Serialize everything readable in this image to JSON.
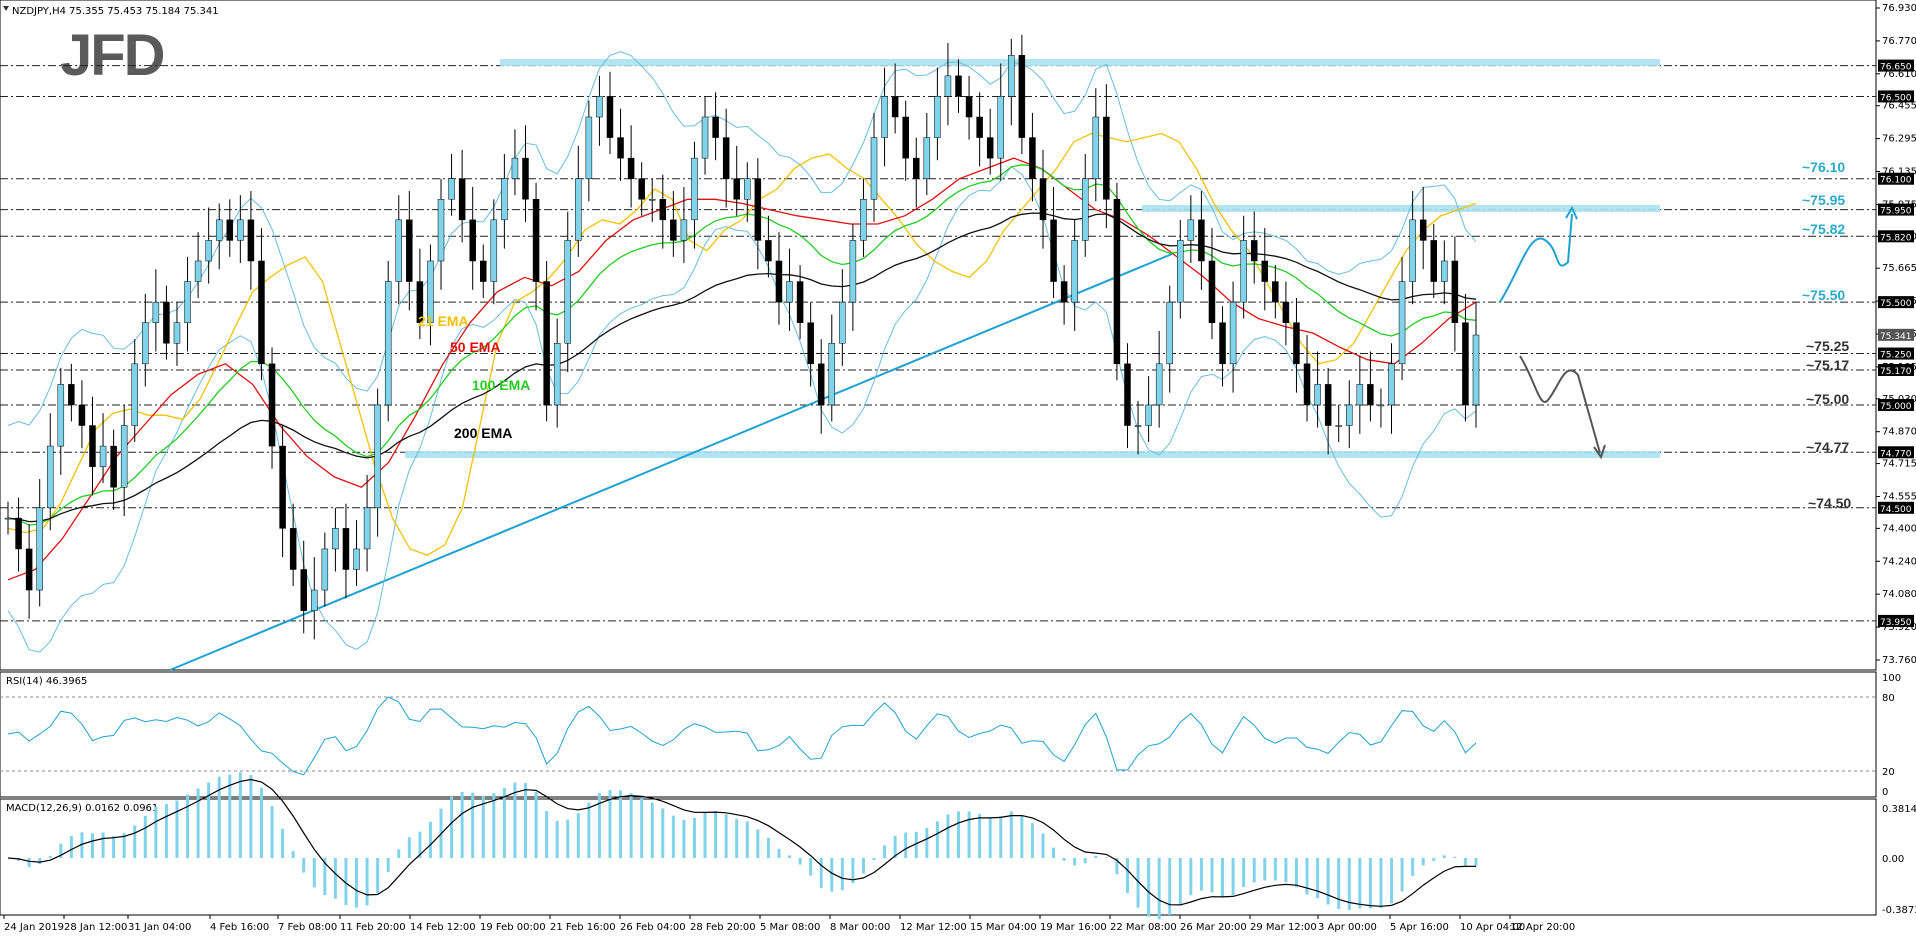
{
  "header": {
    "symbol_info": "NZDJPY,H4  75.355 75.453 75.184 75.341",
    "logo": "JFD"
  },
  "rsi": {
    "label": "RSI(14) 46.3965",
    "ticks": [
      "100",
      "80",
      "20",
      "0"
    ]
  },
  "macd": {
    "label": "MACD(12,26,9) 0.0162 0.0961",
    "ticks": [
      "0.3814",
      "0.00",
      "-0.3873"
    ]
  },
  "ema_labels": [
    {
      "text": "21 EMA",
      "color": "#f2c200"
    },
    {
      "text": "50 EMA",
      "color": "#e01010"
    },
    {
      "text": "100 EMA",
      "color": "#22cc22"
    },
    {
      "text": "200 EMA",
      "color": "#000000"
    }
  ],
  "level_labels": [
    "~76.10",
    "~75.95",
    "~75.82",
    "~75.50",
    "~75.25",
    "~75.17",
    "~75.00",
    "~74.77",
    "~74.50"
  ],
  "chart_data": {
    "type": "line",
    "title": "",
    "ylim": [
      73.76,
      76.93
    ],
    "y_ticks": [
      "76.930",
      "76.770",
      "76.610",
      "76.455",
      "76.295",
      "76.135",
      "75.975",
      "75.820",
      "75.665",
      "75.505",
      "75.345",
      "75.185",
      "75.030",
      "74.870",
      "74.715",
      "74.555",
      "74.400",
      "74.240",
      "74.080",
      "73.920",
      "73.760"
    ],
    "x_ticks": [
      "24 Jan 2019",
      "28 Jan 12:00",
      "31 Jan 04:00",
      "4 Feb 16:00",
      "7 Feb 08:00",
      "11 Feb 20:00",
      "14 Feb 12:00",
      "19 Feb 00:00",
      "21 Feb 16:00",
      "26 Feb 04:00",
      "28 Feb 20:00",
      "5 Mar 08:00",
      "8 Mar 00:00",
      "12 Mar 12:00",
      "15 Mar 04:00",
      "19 Mar 16:00",
      "22 Mar 08:00",
      "26 Mar 20:00",
      "29 Mar 12:00",
      "3 Apr 00:00",
      "5 Apr 16:00",
      "10 Apr 04:00",
      "12 Apr 20:00"
    ],
    "level_boxes": [
      "76.650",
      "76.500",
      "76.100",
      "75.950",
      "75.820",
      "75.500",
      "75.250",
      "75.170",
      "75.000",
      "74.770",
      "74.500",
      "73.950",
      "75.341"
    ],
    "close": [
      74.45,
      74.3,
      74.1,
      74.5,
      74.8,
      75.1,
      75.0,
      74.9,
      74.7,
      74.8,
      74.6,
      74.9,
      75.2,
      75.4,
      75.5,
      75.3,
      75.4,
      75.6,
      75.7,
      75.8,
      75.9,
      75.8,
      75.9,
      75.7,
      75.2,
      74.8,
      74.4,
      74.2,
      74.0,
      74.1,
      74.3,
      74.4,
      74.2,
      74.3,
      74.5,
      75.0,
      75.6,
      75.9,
      75.6,
      75.4,
      75.7,
      76.0,
      76.1,
      75.9,
      75.7,
      75.6,
      75.9,
      76.1,
      76.2,
      76.0,
      75.6,
      75.0,
      75.3,
      75.8,
      76.1,
      76.4,
      76.5,
      76.3,
      76.2,
      76.1,
      76.0,
      76.0,
      75.9,
      75.8,
      75.9,
      76.2,
      76.4,
      76.3,
      76.1,
      76.0,
      76.1,
      75.8,
      75.7,
      75.5,
      75.6,
      75.4,
      75.2,
      75.0,
      75.3,
      75.5,
      75.8,
      76.0,
      76.3,
      76.5,
      76.4,
      76.2,
      76.1,
      76.3,
      76.5,
      76.6,
      76.5,
      76.4,
      76.3,
      76.2,
      76.5,
      76.7,
      76.3,
      76.1,
      75.9,
      75.6,
      75.5,
      75.8,
      76.1,
      76.4,
      76.0,
      75.2,
      74.9,
      74.9,
      75.0,
      75.2,
      75.5,
      75.8,
      75.9,
      75.7,
      75.4,
      75.2,
      75.5,
      75.8,
      75.7,
      75.6,
      75.5,
      75.4,
      75.2,
      75.0,
      75.1,
      74.9,
      74.9,
      75.0,
      75.1,
      75.0,
      75.0,
      75.2,
      75.6,
      75.9,
      75.8,
      75.6,
      75.7,
      75.4,
      75.0,
      75.34
    ],
    "ema21": [
      74.4,
      74.38,
      74.4,
      74.52,
      74.7,
      74.88,
      74.96,
      74.98,
      74.95,
      74.95,
      74.93,
      75.03,
      75.2,
      75.38,
      75.55,
      75.62,
      75.68,
      75.72,
      75.6,
      75.3,
      75.0,
      74.7,
      74.45,
      74.3,
      74.27,
      74.32,
      74.5,
      74.9,
      75.3,
      75.5,
      75.55,
      75.62,
      75.72,
      75.85,
      75.9,
      75.88,
      75.95,
      76.05,
      76.0,
      75.8,
      75.75,
      75.85,
      75.9,
      76.0,
      76.05,
      76.15,
      76.2,
      76.22,
      76.15,
      76.1,
      76.0,
      75.9,
      75.78,
      75.7,
      75.65,
      75.62,
      75.7,
      75.85,
      75.95,
      76.05,
      76.15,
      76.28,
      76.32,
      76.3,
      76.28,
      76.3,
      76.32,
      76.28,
      76.15,
      75.98,
      75.85,
      75.75,
      75.6,
      75.45,
      75.3,
      75.2,
      75.22,
      75.3,
      75.45,
      75.6,
      75.75,
      75.85,
      75.92,
      75.95,
      75.98
    ],
    "ema50": [
      74.15,
      74.2,
      74.35,
      74.55,
      74.75,
      74.9,
      75.05,
      75.15,
      75.2,
      75.1,
      74.9,
      74.75,
      74.65,
      74.6,
      74.72,
      74.95,
      75.2,
      75.4,
      75.55,
      75.62,
      75.58,
      75.65,
      75.8,
      75.9,
      75.95,
      76.0,
      76.0,
      75.98,
      75.95,
      75.92,
      75.9,
      75.88,
      75.88,
      75.92,
      76.0,
      76.1,
      76.15,
      76.2,
      76.15,
      76.05,
      75.95,
      75.9,
      75.82,
      75.72,
      75.62,
      75.5,
      75.42,
      75.38,
      75.35,
      75.28,
      75.22,
      75.2,
      75.3,
      75.42,
      75.5
    ]
  }
}
